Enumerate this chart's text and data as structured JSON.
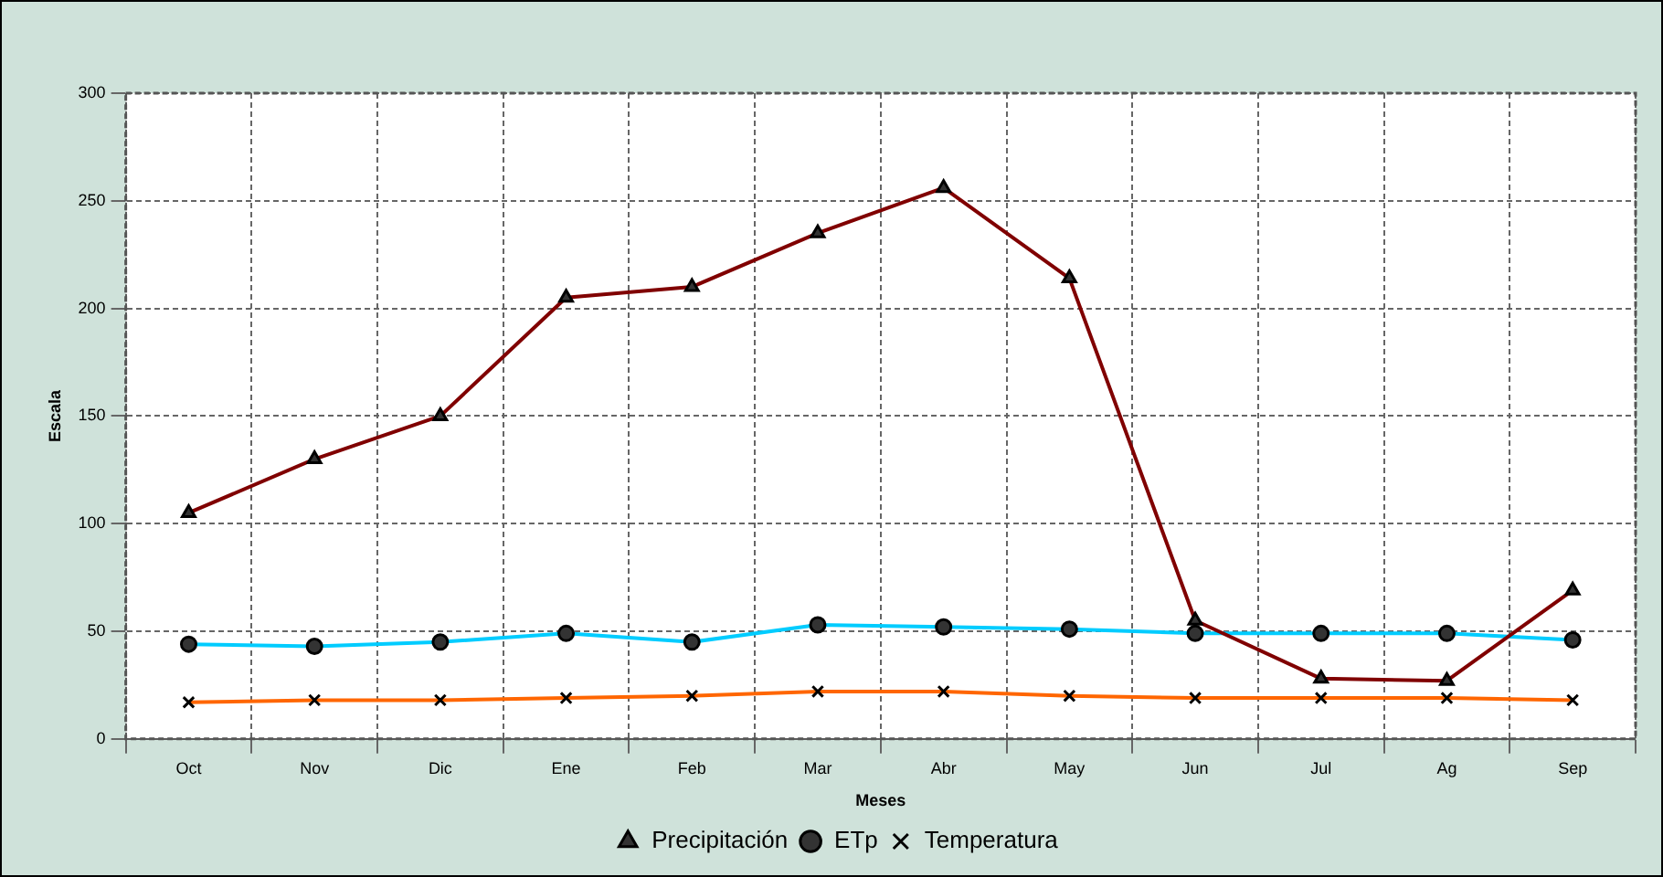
{
  "chart_data": {
    "type": "line",
    "xlabel": "Meses",
    "ylabel": "Escala",
    "categories": [
      "Oct",
      "Nov",
      "Dic",
      "Ene",
      "Feb",
      "Mar",
      "Abr",
      "May",
      "Jun",
      "Jul",
      "Ag",
      "Sep"
    ],
    "series": [
      {
        "name": "Precipitación",
        "color": "#800000",
        "marker": "triangle",
        "values": [
          105,
          130,
          150,
          205,
          210,
          235,
          256,
          214,
          55,
          28,
          27,
          69
        ]
      },
      {
        "name": "ETp",
        "color": "#00ccff",
        "marker": "circle",
        "values": [
          44,
          43,
          45,
          49,
          45,
          53,
          52,
          51,
          49,
          49,
          49,
          46
        ]
      },
      {
        "name": "Temperatura",
        "color": "#ff6600",
        "marker": "cross",
        "values": [
          17,
          18,
          18,
          19,
          20,
          22,
          22,
          20,
          19,
          19,
          19,
          18
        ]
      }
    ],
    "ylim": [
      0,
      300
    ],
    "yticks": [
      0,
      50,
      100,
      150,
      200,
      250,
      300
    ],
    "grid": true,
    "legend": "bottom"
  }
}
